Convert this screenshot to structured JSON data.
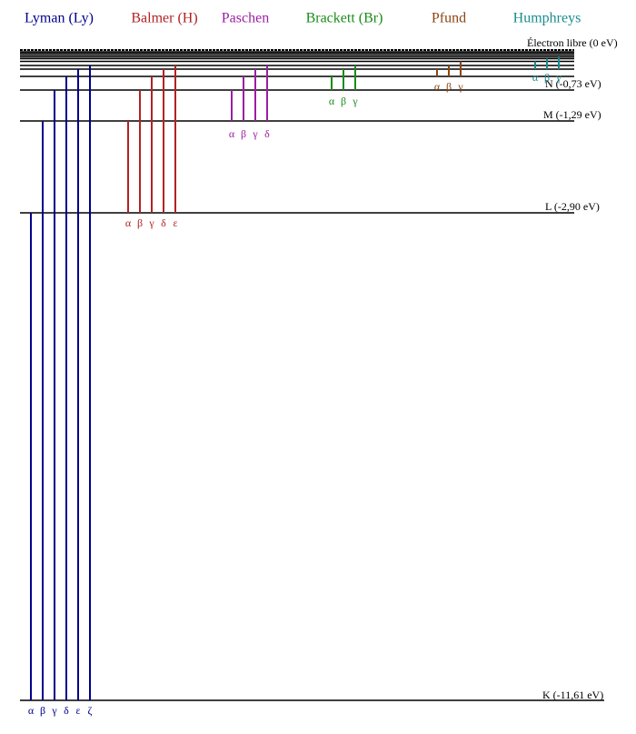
{
  "series": [
    {
      "name": "Lyman (Ly)",
      "color": "#00008b",
      "letters": [
        "α",
        "β",
        "γ",
        "δ",
        "ε",
        "ζ"
      ]
    },
    {
      "name": "Balmer (H)",
      "color": "#b22222",
      "letters": [
        "α",
        "β",
        "γ",
        "δ",
        "ε"
      ]
    },
    {
      "name": "Paschen",
      "color": "#9b1fa3",
      "letters": [
        "α",
        "β",
        "γ",
        "δ"
      ]
    },
    {
      "name": "Brackett (Br)",
      "color": "#1a8c1a",
      "letters": [
        "α",
        "β",
        "γ"
      ]
    },
    {
      "name": "Pfund",
      "color": "#8b4513",
      "letters": [
        "α",
        "β",
        "γ"
      ]
    },
    {
      "name": "Humphreys",
      "color": "#1a8c8c",
      "letters": [
        "α",
        "β",
        "γ"
      ]
    }
  ],
  "levels": [
    {
      "label": "Électron libre (0 eV)"
    },
    {
      "label": "N (-0,73 eV)"
    },
    {
      "label": "M (-1,29 eV)"
    },
    {
      "label": "L (-2,90 eV)"
    },
    {
      "label": "K (-11,61 eV)"
    }
  ]
}
